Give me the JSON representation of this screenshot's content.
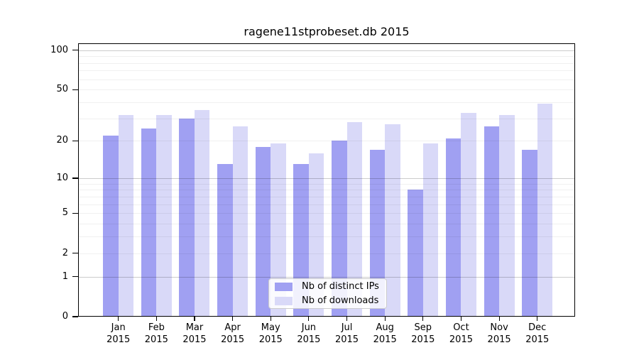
{
  "title": "ragene11stprobeset.db 2015",
  "chart_data": {
    "type": "bar",
    "title": "ragene11stprobeset.db 2015",
    "categories": [
      "Jan",
      "Feb",
      "Mar",
      "Apr",
      "May",
      "Jun",
      "Jul",
      "Aug",
      "Sep",
      "Oct",
      "Nov",
      "Dec"
    ],
    "year": "2015",
    "series": [
      {
        "name": "Nb of distinct IPs",
        "color": "#a0a0f2",
        "values": [
          22,
          25,
          30,
          13,
          18,
          13,
          20,
          17,
          8,
          21,
          26,
          17
        ]
      },
      {
        "name": "Nb of downloads",
        "color": "#d9d9f8",
        "values": [
          32,
          32,
          35,
          26,
          19,
          16,
          28,
          27,
          19,
          33,
          32,
          39
        ]
      }
    ],
    "xlabel": "",
    "ylabel": "",
    "yticks": [
      100,
      50,
      20,
      10,
      5,
      2,
      1,
      0
    ],
    "ylim": [
      0,
      113
    ],
    "yscale": "log10(1+v) symlog-like, 0 at baseline",
    "grid": "on (major lines at 1, 10, 100; faint minors at 2-9 and 20-90)",
    "legend_position": "lower center inside plot",
    "frame_color": "#000000",
    "grid_major_color": "#cccccc",
    "grid_minor_color": "#eeeeee"
  }
}
